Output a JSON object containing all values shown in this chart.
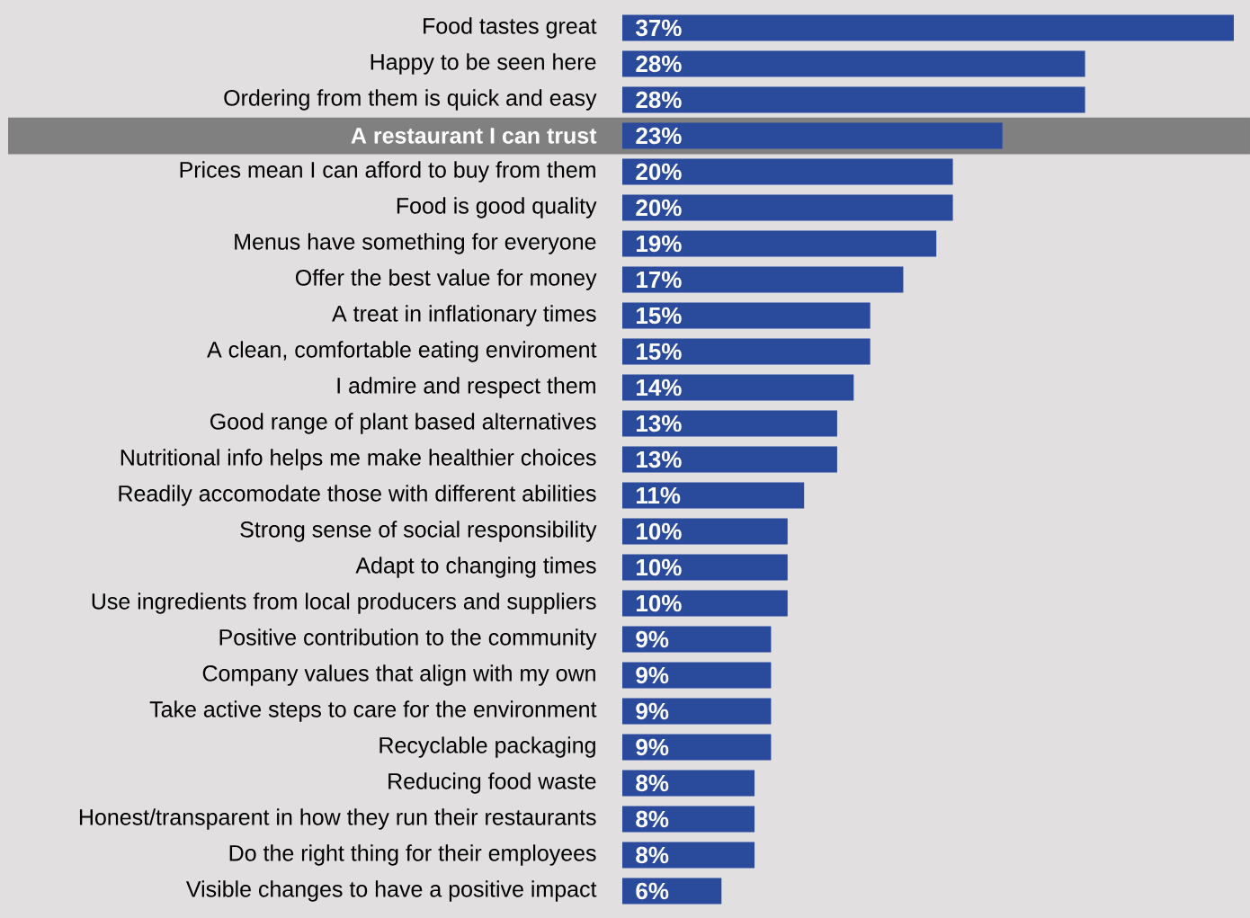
{
  "chart_data": {
    "type": "bar",
    "orientation": "horizontal",
    "categories": [
      "Food tastes great",
      "Happy to be seen here",
      "Ordering from them is quick and easy",
      "A restaurant I can trust",
      "Prices mean I can afford to buy from them",
      "Food is good quality",
      "Menus have something for everyone",
      "Offer the best value for money",
      "A treat in inflationary times",
      "A clean, comfortable eating enviroment",
      "I admire and respect them",
      "Good range of plant based alternatives",
      "Nutritional info helps me make healthier choices",
      "Readily accomodate those with different abilities",
      "Strong sense of social responsibility",
      "Adapt to changing times",
      "Use ingredients from local producers and suppliers",
      "Positive contribution to the community",
      "Company values that align with my own",
      "Take active steps to care for the environment",
      "Recyclable packaging",
      "Reducing food waste",
      "Honest/transparent in how they run their restaurants",
      "Do the right thing for their employees",
      "Visible changes to have a positive impact"
    ],
    "values": [
      37,
      28,
      28,
      23,
      20,
      20,
      19,
      17,
      15,
      15,
      14,
      13,
      13,
      11,
      10,
      10,
      10,
      9,
      9,
      9,
      9,
      8,
      8,
      8,
      6
    ],
    "value_labels": [
      "37%",
      "28%",
      "28%",
      "23%",
      "20%",
      "20%",
      "19%",
      "17%",
      "15%",
      "15%",
      "14%",
      "13%",
      "13%",
      "11%",
      "10%",
      "10%",
      "10%",
      "9%",
      "9%",
      "9%",
      "9%",
      "8%",
      "8%",
      "8%",
      "6%"
    ],
    "color": "#2a4a9c",
    "bands": [
      {
        "axis": "y",
        "from": "A restaurant I can trust",
        "to": "A restaurant I can trust",
        "color": "#808080"
      }
    ]
  }
}
